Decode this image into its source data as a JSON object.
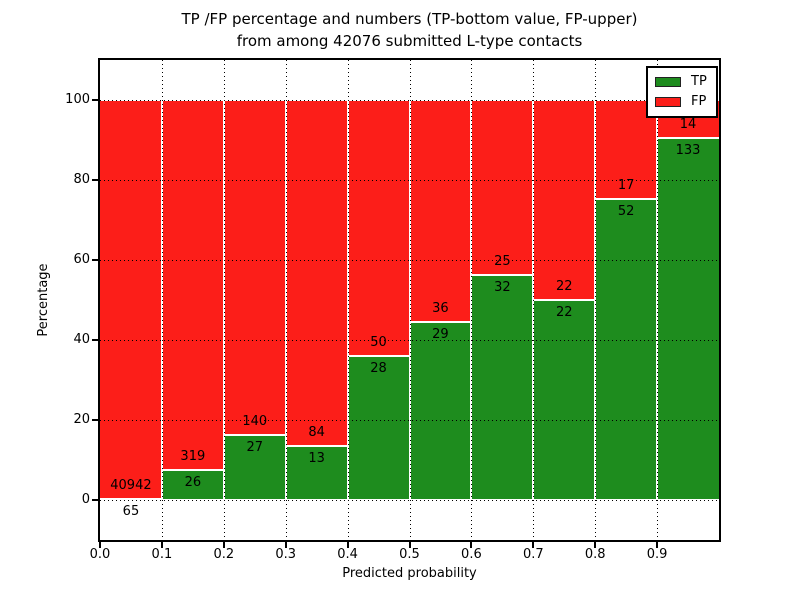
{
  "colors": {
    "tp": "#1e8c1e",
    "fp": "#fc1e19",
    "grid": "#000000",
    "text": "#000000",
    "background": "#ffffff"
  },
  "chart_data": {
    "type": "bar",
    "stacked": true,
    "normalized_to": 100,
    "title_line1": "TP /FP percentage and numbers (TP-bottom value, FP-upper)",
    "title_line2": "from among 42076 submitted L-type contacts",
    "total_contacts": 42076,
    "xlabel": "Predicted probability",
    "ylabel": "Percentage",
    "xlim": [
      0.0,
      1.0
    ],
    "ylim": [
      -10,
      110
    ],
    "grid": "dotted",
    "x_tick_labels": [
      "0.0",
      "0.1",
      "0.2",
      "0.3",
      "0.4",
      "0.5",
      "0.6",
      "0.7",
      "0.8",
      "0.9"
    ],
    "y_ticks": [
      0,
      20,
      40,
      60,
      80,
      100
    ],
    "legend": {
      "position": "upper right",
      "entries": [
        {
          "label": "TP",
          "color_key": "tp"
        },
        {
          "label": "FP",
          "color_key": "fp"
        }
      ]
    },
    "bins": [
      {
        "x_start": 0.0,
        "x_end": 0.1,
        "tp": 65,
        "fp": 40942
      },
      {
        "x_start": 0.1,
        "x_end": 0.2,
        "tp": 26,
        "fp": 319
      },
      {
        "x_start": 0.2,
        "x_end": 0.3,
        "tp": 27,
        "fp": 140
      },
      {
        "x_start": 0.3,
        "x_end": 0.4,
        "tp": 13,
        "fp": 84
      },
      {
        "x_start": 0.4,
        "x_end": 0.5,
        "tp": 28,
        "fp": 50
      },
      {
        "x_start": 0.5,
        "x_end": 0.6,
        "tp": 29,
        "fp": 36
      },
      {
        "x_start": 0.6,
        "x_end": 0.7,
        "tp": 32,
        "fp": 25
      },
      {
        "x_start": 0.7,
        "x_end": 0.8,
        "tp": 22,
        "fp": 22
      },
      {
        "x_start": 0.8,
        "x_end": 0.9,
        "tp": 52,
        "fp": 17
      },
      {
        "x_start": 0.9,
        "x_end": 1.0,
        "tp": 133,
        "fp": 14
      }
    ]
  }
}
